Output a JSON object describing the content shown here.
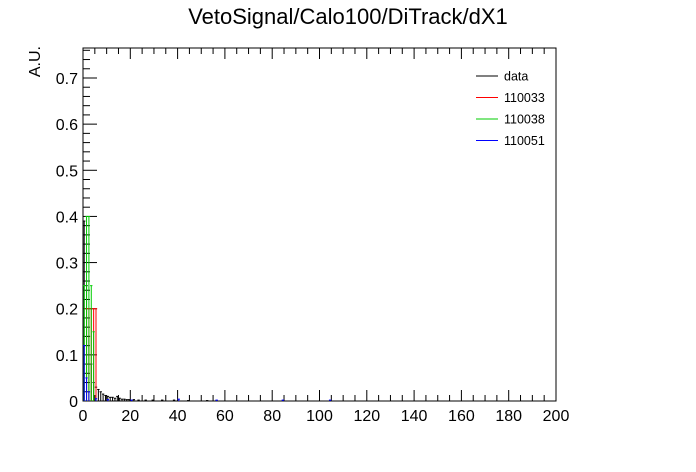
{
  "chart_data": {
    "type": "histogram",
    "title": "VetoSignal/Calo100/DiTrack/dX1",
    "xlabel": "",
    "ylabel": "A.U.",
    "xlim": [
      0,
      200
    ],
    "ylim": [
      0,
      0.765
    ],
    "x_ticks": [
      0,
      20,
      40,
      60,
      80,
      100,
      120,
      140,
      160,
      180,
      200
    ],
    "y_ticks": [
      0,
      0.1,
      0.2,
      0.3,
      0.4,
      0.5,
      0.6,
      0.7
    ],
    "x_tick_labels": [
      "0",
      "20",
      "40",
      "60",
      "80",
      "100",
      "120",
      "140",
      "160",
      "180",
      "200"
    ],
    "y_tick_labels": [
      "0",
      "0.1",
      "0.2",
      "0.3",
      "0.4",
      "0.5",
      "0.6",
      "0.7"
    ],
    "bin_width": 1,
    "legend": {
      "placement": "top-right",
      "entries": [
        "data",
        "110033",
        "110038",
        "110051"
      ]
    },
    "series": [
      {
        "name": "data",
        "color": "#000000",
        "points": [
          [
            0.5,
            0.39
          ],
          [
            1.5,
            0.25
          ],
          [
            2.5,
            0.14
          ],
          [
            3.5,
            0.08
          ],
          [
            4.5,
            0.04
          ],
          [
            5.5,
            0.03
          ],
          [
            6.5,
            0.025
          ],
          [
            7.5,
            0.02
          ],
          [
            8.5,
            0.015
          ],
          [
            9.5,
            0.012
          ],
          [
            10.5,
            0.01
          ],
          [
            11.5,
            0.008
          ],
          [
            12.5,
            0.008
          ],
          [
            13.5,
            0.006
          ],
          [
            14.5,
            0.01
          ],
          [
            15.5,
            0.006
          ],
          [
            16.5,
            0.004
          ],
          [
            17.5,
            0.004
          ],
          [
            18.5,
            0.003
          ],
          [
            19.5,
            0.003
          ],
          [
            21.5,
            0.003
          ],
          [
            23.5,
            0.002
          ],
          [
            26.5,
            0.002
          ],
          [
            29.5,
            0.002
          ],
          [
            33.5,
            0.002
          ],
          [
            38.5,
            0.002
          ],
          [
            44.5,
            0.001
          ],
          [
            52.5,
            0.001
          ]
        ]
      },
      {
        "name": "110033",
        "color": "#ff0000",
        "points": [
          [
            1.5,
            0.2
          ],
          [
            2.5,
            0.2
          ],
          [
            3.5,
            0.2
          ],
          [
            4.5,
            0.2
          ],
          [
            5.5,
            0.2
          ]
        ]
      },
      {
        "name": "110038",
        "color": "#00cc00",
        "points": [
          [
            0.5,
            0.25
          ],
          [
            1.5,
            0.4
          ],
          [
            2.5,
            0.4
          ],
          [
            3.5,
            0.25
          ],
          [
            4.5,
            0.15
          ]
        ]
      },
      {
        "name": "110051",
        "color": "#0000ff",
        "points": [
          [
            0.5,
            0.12
          ],
          [
            1.5,
            0.05
          ],
          [
            2.5,
            0.02
          ],
          [
            5.5,
            0.005
          ],
          [
            10.5,
            0.003
          ],
          [
            20.5,
            0.002
          ],
          [
            40.5,
            0.004
          ],
          [
            56.5,
            0.002
          ],
          [
            84.5,
            0.002
          ],
          [
            104.5,
            0.002
          ]
        ]
      }
    ]
  }
}
